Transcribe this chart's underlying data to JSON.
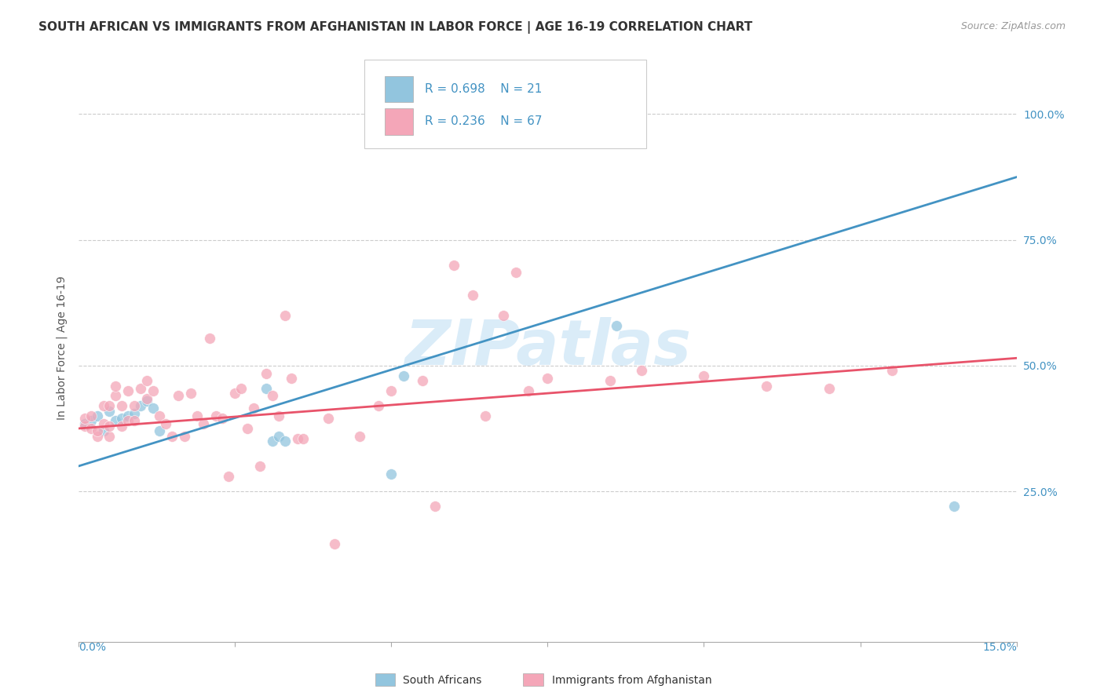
{
  "title": "SOUTH AFRICAN VS IMMIGRANTS FROM AFGHANISTAN IN LABOR FORCE | AGE 16-19 CORRELATION CHART",
  "source": "Source: ZipAtlas.com",
  "ylabel": "In Labor Force | Age 16-19",
  "xlim": [
    0.0,
    0.15
  ],
  "ylim": [
    -0.05,
    1.12
  ],
  "yticks": [
    0.25,
    0.5,
    0.75,
    1.0
  ],
  "ytick_labels": [
    "25.0%",
    "50.0%",
    "75.0%",
    "100.0%"
  ],
  "legend_r1": "R = 0.698",
  "legend_n1": "N = 21",
  "legend_r2": "R = 0.236",
  "legend_n2": "N = 67",
  "legend_label1": "South Africans",
  "legend_label2": "Immigrants from Afghanistan",
  "color_blue": "#92C5DE",
  "color_pink": "#F4A6B8",
  "color_blue_line": "#4393C3",
  "color_pink_line": "#E8536A",
  "color_title": "#333333",
  "color_axis_labels": "#4393C3",
  "watermark_text": "ZIPatlas",
  "watermark_color": "#D6EAF8",
  "blue_scatter_x": [
    0.001,
    0.002,
    0.003,
    0.004,
    0.005,
    0.006,
    0.007,
    0.008,
    0.009,
    0.01,
    0.011,
    0.012,
    0.013,
    0.03,
    0.031,
    0.032,
    0.033,
    0.05,
    0.052,
    0.086,
    0.14
  ],
  "blue_scatter_y": [
    0.385,
    0.39,
    0.4,
    0.37,
    0.41,
    0.39,
    0.395,
    0.4,
    0.405,
    0.42,
    0.43,
    0.415,
    0.37,
    0.455,
    0.35,
    0.36,
    0.35,
    0.285,
    0.48,
    0.58,
    0.22
  ],
  "pink_scatter_x": [
    0.001,
    0.001,
    0.002,
    0.002,
    0.003,
    0.003,
    0.004,
    0.004,
    0.005,
    0.005,
    0.005,
    0.006,
    0.006,
    0.007,
    0.007,
    0.008,
    0.008,
    0.009,
    0.009,
    0.01,
    0.011,
    0.011,
    0.012,
    0.013,
    0.014,
    0.015,
    0.016,
    0.017,
    0.018,
    0.019,
    0.02,
    0.021,
    0.022,
    0.023,
    0.024,
    0.025,
    0.026,
    0.027,
    0.028,
    0.029,
    0.03,
    0.031,
    0.032,
    0.033,
    0.034,
    0.035,
    0.036,
    0.04,
    0.041,
    0.045,
    0.048,
    0.05,
    0.055,
    0.057,
    0.06,
    0.063,
    0.065,
    0.068,
    0.07,
    0.072,
    0.075,
    0.085,
    0.09,
    0.1,
    0.11,
    0.12,
    0.13
  ],
  "pink_scatter_y": [
    0.38,
    0.395,
    0.375,
    0.4,
    0.36,
    0.37,
    0.42,
    0.385,
    0.36,
    0.38,
    0.42,
    0.44,
    0.46,
    0.38,
    0.42,
    0.39,
    0.45,
    0.39,
    0.42,
    0.455,
    0.435,
    0.47,
    0.45,
    0.4,
    0.385,
    0.36,
    0.44,
    0.36,
    0.445,
    0.4,
    0.385,
    0.555,
    0.4,
    0.395,
    0.28,
    0.445,
    0.455,
    0.375,
    0.415,
    0.3,
    0.485,
    0.44,
    0.4,
    0.6,
    0.475,
    0.355,
    0.355,
    0.395,
    0.145,
    0.36,
    0.42,
    0.45,
    0.47,
    0.22,
    0.7,
    0.64,
    0.4,
    0.6,
    0.685,
    0.45,
    0.475,
    0.47,
    0.49,
    0.48,
    0.46,
    0.455,
    0.49
  ],
  "blue_line_x": [
    0.0,
    0.15
  ],
  "blue_line_y": [
    0.3,
    0.875
  ],
  "pink_line_x": [
    0.0,
    0.15
  ],
  "pink_line_y": [
    0.375,
    0.515
  ],
  "grid_color": "#CCCCCC",
  "background_color": "#ffffff",
  "dot_size": 100,
  "dot_alpha": 0.75,
  "line_width": 2.0,
  "title_fontsize": 11,
  "source_fontsize": 9,
  "ylabel_fontsize": 10,
  "ytick_fontsize": 10,
  "xtick_fontsize": 10,
  "legend_fontsize": 11
}
